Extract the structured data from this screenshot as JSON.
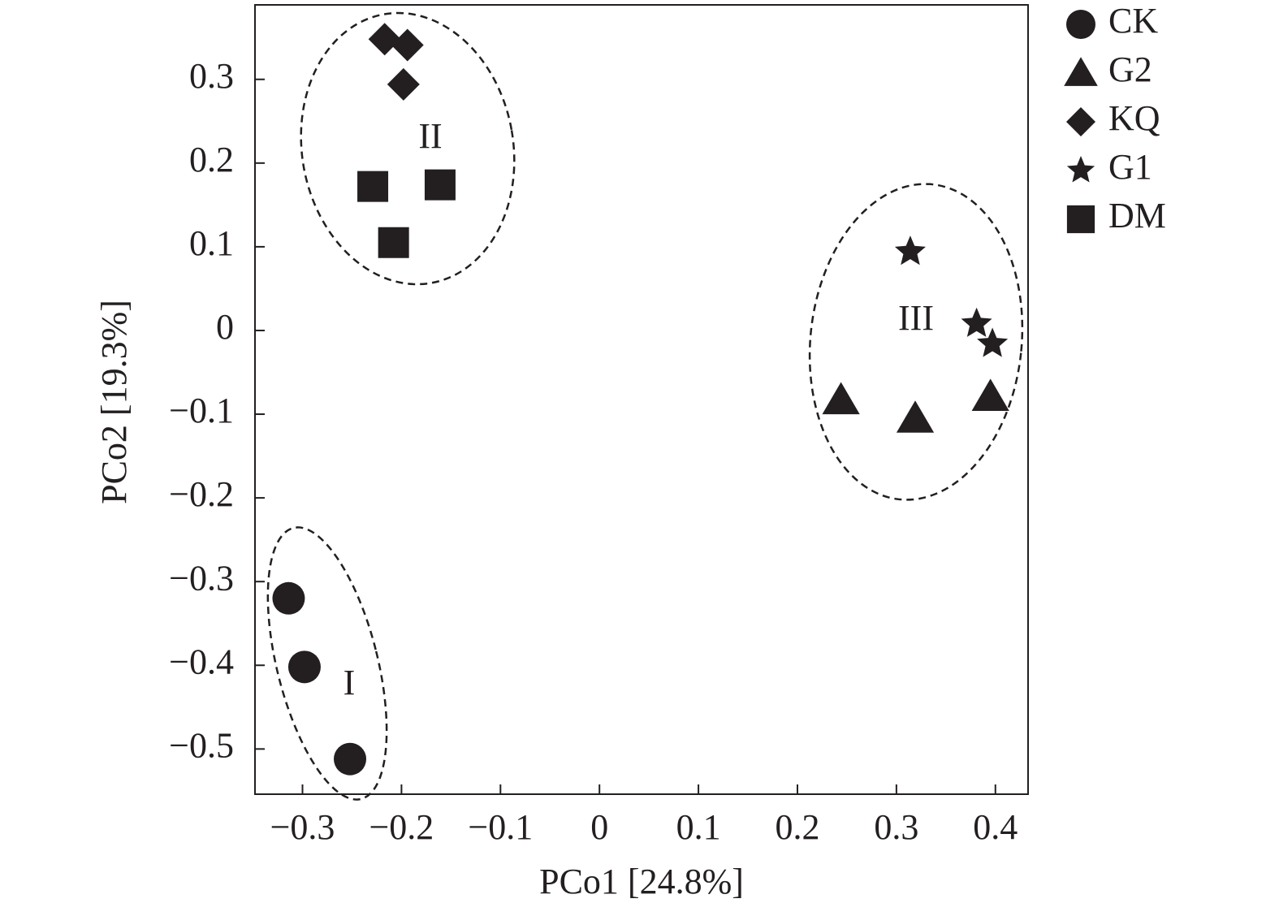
{
  "chart_data": {
    "type": "scatter",
    "xlabel": "PCo1 [24.8%]",
    "ylabel": "PCo2 [19.3%]",
    "xlim": [
      -0.348,
      0.433
    ],
    "ylim": [
      -0.554,
      0.389
    ],
    "xticks": [
      {
        "value": -0.3,
        "label": "−0.3"
      },
      {
        "value": -0.2,
        "label": "−0.2"
      },
      {
        "value": -0.1,
        "label": "−0.1"
      },
      0,
      0.1,
      0.2,
      0.3,
      0.4
    ],
    "yticks": [
      {
        "value": -0.5,
        "label": "−0.5"
      },
      {
        "value": -0.4,
        "label": "−0.4"
      },
      {
        "value": -0.3,
        "label": "−0.3"
      },
      {
        "value": -0.2,
        "label": "−0.2"
      },
      {
        "value": -0.1,
        "label": "−0.1"
      },
      0,
      0.1,
      0.2,
      0.3
    ],
    "grid": false,
    "legend": "upper right",
    "series": [
      {
        "name": "CK",
        "marker": "circle",
        "color": "#231f20",
        "x": [
          -0.314,
          -0.298,
          -0.252
        ],
        "values": [
          -0.32,
          -0.402,
          -0.512
        ]
      },
      {
        "name": "G2",
        "marker": "triangle",
        "color": "#231f20",
        "x": [
          0.244,
          0.319,
          0.395
        ],
        "values": [
          -0.083,
          -0.105,
          -0.079
        ]
      },
      {
        "name": "KQ",
        "marker": "diamond",
        "color": "#231f20",
        "x": [
          -0.217,
          -0.194,
          -0.198
        ],
        "values": [
          0.348,
          0.341,
          0.294
        ]
      },
      {
        "name": "G1",
        "marker": "star",
        "color": "#231f20",
        "x": [
          0.314,
          0.381,
          0.397
        ],
        "values": [
          0.094,
          0.008,
          -0.016
        ]
      },
      {
        "name": "DM",
        "marker": "square",
        "color": "#231f20",
        "x": [
          -0.229,
          -0.161,
          -0.208
        ],
        "values": [
          0.172,
          0.174,
          0.105
        ]
      }
    ],
    "annotations": [
      "I",
      "II",
      "III"
    ]
  }
}
